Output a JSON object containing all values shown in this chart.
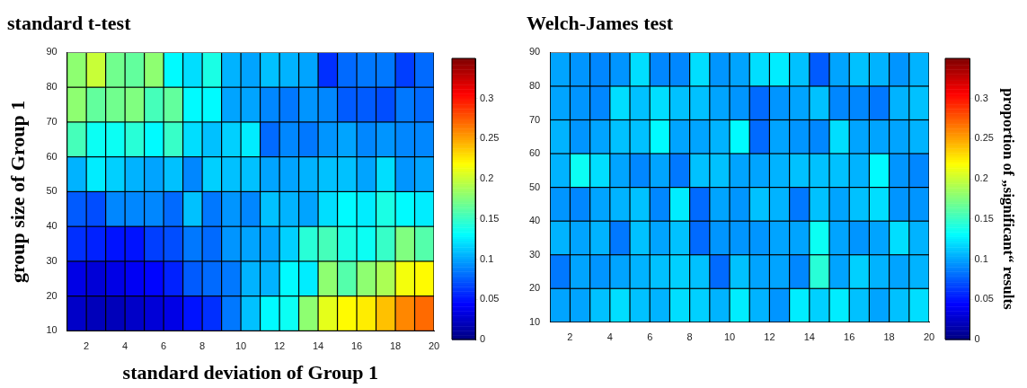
{
  "chart_data": [
    {
      "type": "heatmap",
      "title": "standard t-test",
      "xlabel": "standard deviation of Group 1",
      "ylabel": "group size of Group 1",
      "xlim": [
        1,
        20
      ],
      "xticks": [
        2,
        4,
        6,
        8,
        10,
        12,
        14,
        16,
        18,
        20
      ],
      "ylim": [
        10,
        90
      ],
      "yticks": [
        10,
        20,
        30,
        40,
        50,
        60,
        70,
        80,
        90
      ],
      "clim": [
        0,
        0.35
      ],
      "cticks": [
        0,
        0.05,
        0.1,
        0.15,
        0.2,
        0.25,
        0.3
      ],
      "cells": [
        [
          0.18,
          0.2,
          0.17,
          0.165,
          0.18,
          0.13,
          0.12,
          0.14,
          0.105,
          0.1,
          0.11,
          0.105,
          0.1,
          0.06,
          0.08,
          0.085,
          0.085,
          0.065,
          0.08
        ],
        [
          0.18,
          0.165,
          0.17,
          0.175,
          0.155,
          0.165,
          0.13,
          0.13,
          0.1,
          0.1,
          0.09,
          0.085,
          0.095,
          0.09,
          0.075,
          0.075,
          0.07,
          0.085,
          0.08
        ],
        [
          0.155,
          0.135,
          0.135,
          0.145,
          0.13,
          0.15,
          0.12,
          0.11,
          0.115,
          0.125,
          0.08,
          0.09,
          0.085,
          0.095,
          0.1,
          0.09,
          0.095,
          0.09,
          0.09
        ],
        [
          0.105,
          0.125,
          0.115,
          0.105,
          0.1,
          0.11,
          0.09,
          0.115,
          0.11,
          0.11,
          0.1,
          0.1,
          0.105,
          0.11,
          0.11,
          0.1,
          0.12,
          0.095,
          0.1
        ],
        [
          0.075,
          0.07,
          0.09,
          0.09,
          0.09,
          0.08,
          0.11,
          0.085,
          0.095,
          0.09,
          0.11,
          0.105,
          0.1,
          0.12,
          0.13,
          0.125,
          0.14,
          0.13,
          0.125
        ],
        [
          0.06,
          0.055,
          0.05,
          0.05,
          0.065,
          0.07,
          0.085,
          0.08,
          0.095,
          0.1,
          0.1,
          0.115,
          0.145,
          0.155,
          0.14,
          0.135,
          0.15,
          0.175,
          0.16
        ],
        [
          0.035,
          0.03,
          0.035,
          0.04,
          0.045,
          0.055,
          0.075,
          0.08,
          0.085,
          0.105,
          0.105,
          0.13,
          0.125,
          0.18,
          0.16,
          0.18,
          0.19,
          0.215,
          0.22
        ],
        [
          0.025,
          0.02,
          0.02,
          0.025,
          0.03,
          0.035,
          0.05,
          0.06,
          0.085,
          0.11,
          0.13,
          0.135,
          0.18,
          0.21,
          0.22,
          0.225,
          0.24,
          0.26,
          0.27
        ]
      ]
    },
    {
      "type": "heatmap",
      "title": "Welch-James test",
      "clabel": "proportion of „significant“ results",
      "xlim": [
        1,
        20
      ],
      "xticks": [
        2,
        4,
        6,
        8,
        10,
        12,
        14,
        16,
        18,
        20
      ],
      "ylim": [
        10,
        90
      ],
      "yticks": [
        10,
        20,
        30,
        40,
        50,
        60,
        70,
        80,
        90
      ],
      "clim": [
        0,
        0.35
      ],
      "cticks": [
        0,
        0.05,
        0.1,
        0.15,
        0.2,
        0.25,
        0.3
      ],
      "cells": [
        [
          0.1,
          0.095,
          0.09,
          0.095,
          0.12,
          0.09,
          0.09,
          0.12,
          0.095,
          0.1,
          0.12,
          0.125,
          0.11,
          0.075,
          0.1,
          0.11,
          0.105,
          0.095,
          0.105
        ],
        [
          0.1,
          0.095,
          0.09,
          0.12,
          0.11,
          0.12,
          0.11,
          0.11,
          0.1,
          0.095,
          0.08,
          0.095,
          0.1,
          0.11,
          0.09,
          0.09,
          0.085,
          0.105,
          0.11
        ],
        [
          0.105,
          0.095,
          0.1,
          0.11,
          0.11,
          0.13,
          0.1,
          0.1,
          0.105,
          0.13,
          0.08,
          0.1,
          0.095,
          0.09,
          0.12,
          0.1,
          0.1,
          0.1,
          0.105
        ],
        [
          0.105,
          0.135,
          0.12,
          0.1,
          0.09,
          0.1,
          0.085,
          0.11,
          0.11,
          0.1,
          0.1,
          0.105,
          0.11,
          0.11,
          0.11,
          0.105,
          0.13,
          0.095,
          0.09
        ],
        [
          0.095,
          0.09,
          0.1,
          0.105,
          0.11,
          0.09,
          0.125,
          0.08,
          0.1,
          0.095,
          0.11,
          0.105,
          0.085,
          0.11,
          0.1,
          0.11,
          0.12,
          0.095,
          0.095
        ],
        [
          0.105,
          0.1,
          0.105,
          0.085,
          0.11,
          0.1,
          0.11,
          0.08,
          0.095,
          0.095,
          0.095,
          0.1,
          0.1,
          0.135,
          0.1,
          0.095,
          0.1,
          0.12,
          0.105
        ],
        [
          0.085,
          0.1,
          0.095,
          0.1,
          0.105,
          0.11,
          0.115,
          0.11,
          0.08,
          0.11,
          0.1,
          0.1,
          0.09,
          0.145,
          0.1,
          0.115,
          0.105,
          0.1,
          0.105
        ],
        [
          0.1,
          0.1,
          0.11,
          0.12,
          0.11,
          0.105,
          0.12,
          0.115,
          0.105,
          0.125,
          0.105,
          0.095,
          0.125,
          0.115,
          0.125,
          0.11,
          0.1,
          0.11,
          0.12
        ]
      ]
    }
  ]
}
